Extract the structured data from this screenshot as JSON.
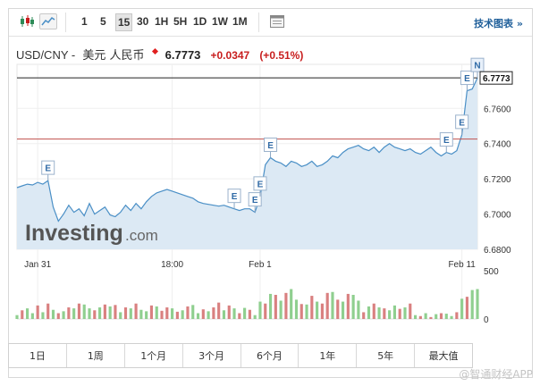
{
  "toolbar": {
    "timeframes": [
      "1",
      "5",
      "15",
      "30",
      "1H",
      "5H",
      "1D",
      "1W",
      "1M"
    ],
    "active_timeframe": "15",
    "technical_chart_label": "技术图表 »"
  },
  "header": {
    "pair": "USD/CNY -",
    "pair_name": "美元 人民币",
    "price": "6.7773",
    "change": "+0.0347",
    "change_pct": "(+0.51%)"
  },
  "colors": {
    "line": "#4a8fc6",
    "area_fill": "#dce9f4",
    "up_bar": "#8fcf8f",
    "down_bar": "#d98080",
    "ref_line": "#c0504d",
    "current_line": "#222222",
    "watermark": "#555555"
  },
  "chart_data": {
    "type": "area",
    "ylim": [
      6.68,
      6.785
    ],
    "ytick_labels": [
      "6.7600",
      "6.7400",
      "6.7200",
      "6.7000",
      "6.6800"
    ],
    "yticks": [
      6.76,
      6.74,
      6.72,
      6.7,
      6.68
    ],
    "xtick_labels": [
      "Jan 31",
      "18:00",
      "Feb 1",
      "Feb 11"
    ],
    "xtick_index": [
      4,
      30,
      47,
      86
    ],
    "current_value": 6.7773,
    "current_label": "6.7773",
    "previous_close": 6.7426,
    "x_count": 90,
    "series": [
      {
        "values": [
          6.715,
          6.716,
          6.717,
          6.7165,
          6.718,
          6.717,
          6.719,
          6.704,
          6.696,
          6.7,
          6.705,
          6.701,
          6.703,
          6.699,
          6.706,
          6.7,
          6.702,
          6.704,
          6.6995,
          6.6985,
          6.701,
          6.705,
          6.702,
          6.706,
          6.703,
          6.707,
          6.71,
          6.712,
          6.713,
          6.714,
          6.713,
          6.712,
          6.711,
          6.71,
          6.709,
          6.707,
          6.706,
          6.7055,
          6.705,
          6.7045,
          6.705,
          6.704,
          6.703,
          6.702,
          6.703,
          6.703,
          6.701,
          6.71,
          6.728,
          6.732,
          6.73,
          6.729,
          6.727,
          6.73,
          6.729,
          6.727,
          6.728,
          6.73,
          6.727,
          6.728,
          6.73,
          6.733,
          6.732,
          6.735,
          6.737,
          6.738,
          6.739,
          6.737,
          6.736,
          6.738,
          6.735,
          6.738,
          6.74,
          6.738,
          6.737,
          6.736,
          6.737,
          6.735,
          6.734,
          6.736,
          6.738,
          6.735,
          6.733,
          6.735,
          6.734,
          6.736,
          6.745,
          6.77,
          6.771,
          6.7773
        ]
      }
    ],
    "volume_ylim": [
      0,
      500
    ],
    "volume_tick_labels": [
      "500",
      "0"
    ],
    "volume_ticks": [
      500,
      0
    ],
    "volume": [
      40,
      90,
      110,
      60,
      140,
      70,
      160,
      95,
      60,
      80,
      120,
      110,
      160,
      150,
      110,
      90,
      120,
      150,
      130,
      145,
      70,
      120,
      110,
      160,
      95,
      80,
      140,
      130,
      85,
      120,
      110,
      75,
      90,
      130,
      145,
      60,
      100,
      80,
      120,
      170,
      90,
      140,
      110,
      60,
      115,
      95,
      40,
      180,
      160,
      260,
      250,
      190,
      270,
      310,
      200,
      155,
      150,
      240,
      180,
      160,
      270,
      280,
      200,
      180,
      260,
      250,
      190,
      70,
      130,
      160,
      120,
      110,
      90,
      140,
      105,
      120,
      160,
      40,
      30,
      60,
      20,
      50,
      60,
      55,
      30,
      70,
      210,
      230,
      300,
      310
    ],
    "volume_up": [
      1,
      0,
      1,
      1,
      0,
      1,
      0,
      1,
      0,
      1,
      0,
      1,
      0,
      1,
      1,
      0,
      1,
      0,
      1,
      0,
      1,
      0,
      1,
      0,
      1,
      1,
      0,
      1,
      0,
      0,
      1,
      0,
      1,
      0,
      1,
      1,
      0,
      1,
      0,
      0,
      1,
      0,
      1,
      0,
      1,
      0,
      1,
      1,
      0,
      1,
      0,
      1,
      0,
      1,
      1,
      0,
      1,
      0,
      1,
      0,
      0,
      1,
      0,
      1,
      0,
      1,
      1,
      0,
      1,
      0,
      1,
      0,
      1,
      1,
      0,
      1,
      0,
      1,
      0,
      1,
      0,
      1,
      0,
      1,
      1,
      0,
      1,
      0,
      1,
      1
    ],
    "events": [
      {
        "label": "E",
        "index": 6
      },
      {
        "label": "E",
        "index": 42
      },
      {
        "label": "E",
        "index": 46
      },
      {
        "label": "E",
        "index": 47
      },
      {
        "label": "E",
        "index": 49
      },
      {
        "label": "E",
        "index": 83
      },
      {
        "label": "E",
        "index": 86
      },
      {
        "label": "E",
        "index": 87
      },
      {
        "label": "N",
        "index": 89
      }
    ]
  },
  "range_buttons": [
    "1日",
    "1周",
    "1个月",
    "3个月",
    "6个月",
    "1年",
    "5年",
    "最大值"
  ],
  "watermark": {
    "brand_main": "Investing",
    "brand_suffix": ".com",
    "footer": "@智通财经APP"
  }
}
